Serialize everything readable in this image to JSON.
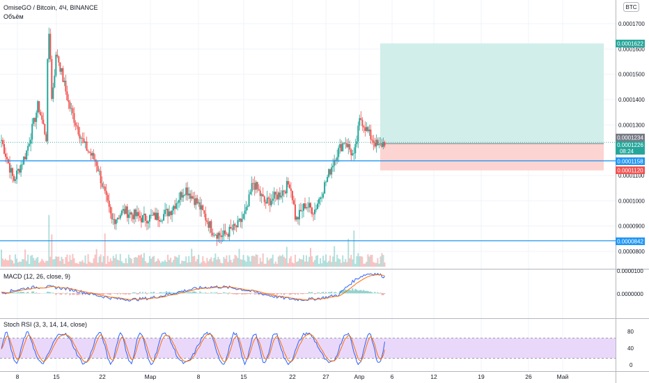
{
  "header": {
    "title": "OmiseGO / Bitcoin, 4Ч, BINANCE",
    "volume_label": "Объём",
    "currency_badge": "BTC"
  },
  "macd": {
    "label": "MACD (12, 26, close, 9)",
    "ticks": [
      "0.0000100",
      "0.0000000"
    ]
  },
  "stoch": {
    "label": "Stoch RSI (3, 3, 14, 14, close)",
    "ticks": [
      "80",
      "40",
      "0"
    ]
  },
  "time_axis": [
    "8",
    "15",
    "22",
    "Мар",
    "8",
    "15",
    "22",
    "27",
    "Апр",
    "6",
    "12",
    "19",
    "26",
    "Май"
  ],
  "price_labels": {
    "target": "0.0001622",
    "current": "0.0001234",
    "entry": "0.0001226",
    "countdown": "08:24",
    "level_upper": "0.0001158",
    "stop": "0.0001120",
    "level_lower": "0.0000842"
  },
  "colors": {
    "up": "#26a69a",
    "down": "#ef5350",
    "level_line": "#2196f3",
    "profit_zone": "#d1eeea",
    "loss_zone": "#fcd4d2",
    "stoch_band": "#ead8fb",
    "macd_line": "#2962ff",
    "signal_line": "#ff6d00"
  },
  "chart_data": {
    "type": "candlestick",
    "symbol": "OmiseGO / Bitcoin",
    "interval": "4Ч",
    "exchange": "BINANCE",
    "y_ticks": [
      "0.0001700",
      "0.0001600",
      "0.0001500",
      "0.0001400",
      "0.0001300",
      "0.0001100",
      "0.0001000",
      "0.0000900",
      "0.0000800"
    ],
    "ylim": [
      7.75e-05,
      0.000171
    ],
    "grid": true,
    "price_path": [
      [
        0,
        0.000124
      ],
      [
        0.02,
        0.000108
      ],
      [
        0.04,
        0.0001185
      ],
      [
        0.06,
        0.000138
      ],
      [
        0.075,
        0.000123
      ],
      [
        0.09,
        0.000159
      ],
      [
        0.11,
        0.000138
      ],
      [
        0.135,
        0.000122
      ],
      [
        0.155,
        0.000115
      ],
      [
        0.18,
        9.2e-05
      ],
      [
        0.2,
        9.6e-05
      ],
      [
        0.23,
        9.3e-05
      ],
      [
        0.26,
        9.4e-05
      ],
      [
        0.275,
        9.6e-05
      ],
      [
        0.3,
        0.000105
      ],
      [
        0.32,
        9.9e-05
      ],
      [
        0.345,
        8.8e-05
      ],
      [
        0.36,
        8.6e-05
      ],
      [
        0.385,
        9e-05
      ],
      [
        0.4,
        9.6e-05
      ],
      [
        0.41,
        0.0001075
      ],
      [
        0.43,
        9.9e-05
      ],
      [
        0.455,
        0.000103
      ],
      [
        0.47,
        0.000107
      ],
      [
        0.475,
        0.000101
      ],
      [
        0.48,
        9.2e-05
      ],
      [
        0.495,
        9.85e-05
      ],
      [
        0.51,
        9.6e-05
      ],
      [
        0.525,
        0.000105
      ],
      [
        0.545,
        0.000118
      ],
      [
        0.56,
        0.000124
      ],
      [
        0.575,
        0.000117
      ],
      [
        0.585,
        0.000133
      ],
      [
        0.6,
        0.000126
      ],
      [
        0.615,
        0.000121
      ],
      [
        0.625,
        0.0001234
      ]
    ],
    "levels": [
      0.0001158,
      8.42e-05
    ],
    "position": {
      "entry": 0.0001226,
      "target": 0.0001622,
      "stop": 0.000112
    }
  }
}
